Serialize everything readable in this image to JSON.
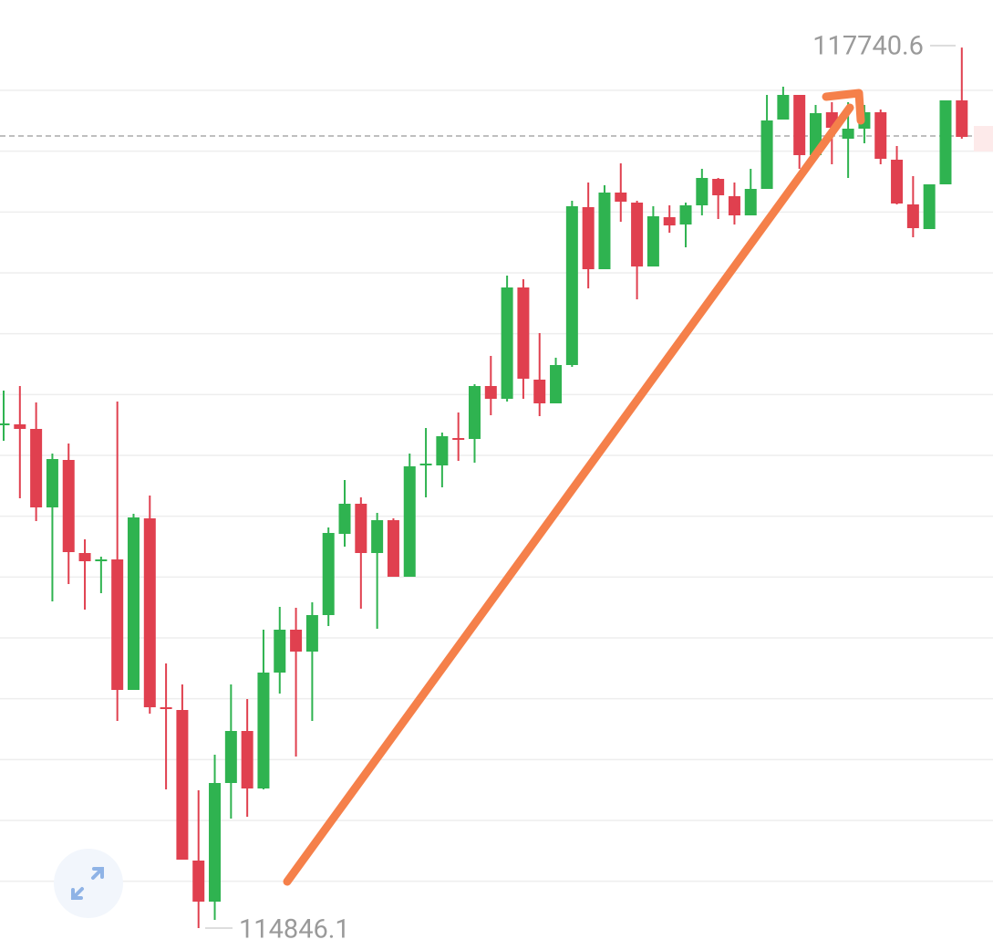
{
  "chart_data": {
    "type": "candlestick",
    "up_color": "#2fb350",
    "down_color": "#e0404f",
    "grid_color": "#eeeeee",
    "ylim": [
      114774,
      117897
    ],
    "grid": [
      115000,
      115200,
      115400,
      115600,
      115800,
      116000,
      116200,
      116400,
      116600,
      116800,
      117000,
      117200,
      117400,
      117600
    ],
    "last_price": 117450,
    "max_label": 117740.6,
    "min_label": 114846.1,
    "ohlc": [
      [
        116499,
        116613,
        116448,
        116505
      ],
      [
        116502,
        116628,
        116259,
        116487
      ],
      [
        116487,
        116574,
        116184,
        116229
      ],
      [
        116229,
        116406,
        115920,
        116388
      ],
      [
        116385,
        116439,
        115977,
        116082
      ],
      [
        116079,
        116124,
        115893,
        116052
      ],
      [
        116052,
        116067,
        115947,
        116058
      ],
      [
        116058,
        116577,
        115527,
        115629
      ],
      [
        115629,
        116208,
        115629,
        116196
      ],
      [
        116193,
        116268,
        115551,
        115572
      ],
      [
        115572,
        115716,
        115302,
        115569
      ],
      [
        115563,
        115647,
        115071,
        115071
      ],
      [
        115068,
        115299,
        114846.1,
        114933
      ],
      [
        114933,
        115416,
        114873,
        115323
      ],
      [
        115323,
        115647,
        115206,
        115494
      ],
      [
        115494,
        115599,
        115212,
        115305
      ],
      [
        115305,
        115827,
        115302,
        115686
      ],
      [
        115686,
        115902,
        115617,
        115827
      ],
      [
        115827,
        115899,
        115410,
        115755
      ],
      [
        115755,
        115917,
        115527,
        115875
      ],
      [
        115875,
        116163,
        115839,
        116145
      ],
      [
        116142,
        116319,
        116100,
        116241
      ],
      [
        116241,
        116262,
        115896,
        116079
      ],
      [
        116079,
        116211,
        115830,
        116187
      ],
      [
        116187,
        116193,
        116001,
        116001
      ],
      [
        116001,
        116406,
        116001,
        116364
      ],
      [
        116367,
        116490,
        116262,
        116373
      ],
      [
        116367,
        116475,
        116295,
        116463
      ],
      [
        116457,
        116541,
        116382,
        116454
      ],
      [
        116454,
        116634,
        116376,
        116628
      ],
      [
        116628,
        116727,
        116532,
        116586
      ],
      [
        116586,
        116991,
        116577,
        116952
      ],
      [
        116952,
        116979,
        116586,
        116652
      ],
      [
        116649,
        116802,
        116529,
        116571
      ],
      [
        116571,
        116721,
        116571,
        116697
      ],
      [
        116697,
        117237,
        116691,
        117219
      ],
      [
        117216,
        117297,
        116949,
        117012
      ],
      [
        117012,
        117288,
        117012,
        117264
      ],
      [
        117264,
        117360,
        117168,
        117234
      ],
      [
        117231,
        117237,
        116913,
        117021
      ],
      [
        117021,
        117219,
        117021,
        117186
      ],
      [
        117183,
        117222,
        117132,
        117156
      ],
      [
        117159,
        117231,
        117084,
        117222
      ],
      [
        117222,
        117342,
        117189,
        117312
      ],
      [
        117309,
        117312,
        117177,
        117255
      ],
      [
        117252,
        117297,
        117159,
        117189
      ],
      [
        117189,
        117342,
        117189,
        117276
      ],
      [
        117276,
        117585,
        117276,
        117501
      ],
      [
        117504,
        117612,
        117504,
        117585
      ],
      [
        117585,
        117585,
        117342,
        117387
      ],
      [
        117387,
        117552,
        117375,
        117525
      ],
      [
        117528,
        117561,
        117357,
        117477
      ],
      [
        117441,
        117561,
        117312,
        117474
      ],
      [
        117474,
        117552,
        117426,
        117528
      ],
      [
        117528,
        117537,
        117357,
        117375
      ],
      [
        117372,
        117417,
        117225,
        117228
      ],
      [
        117225,
        117318,
        117117,
        117147
      ],
      [
        117144,
        117291,
        117144,
        117291
      ],
      [
        117291,
        117567,
        117291,
        117567
      ],
      [
        117567,
        117740.6,
        117441,
        117447
      ]
    ]
  }
}
